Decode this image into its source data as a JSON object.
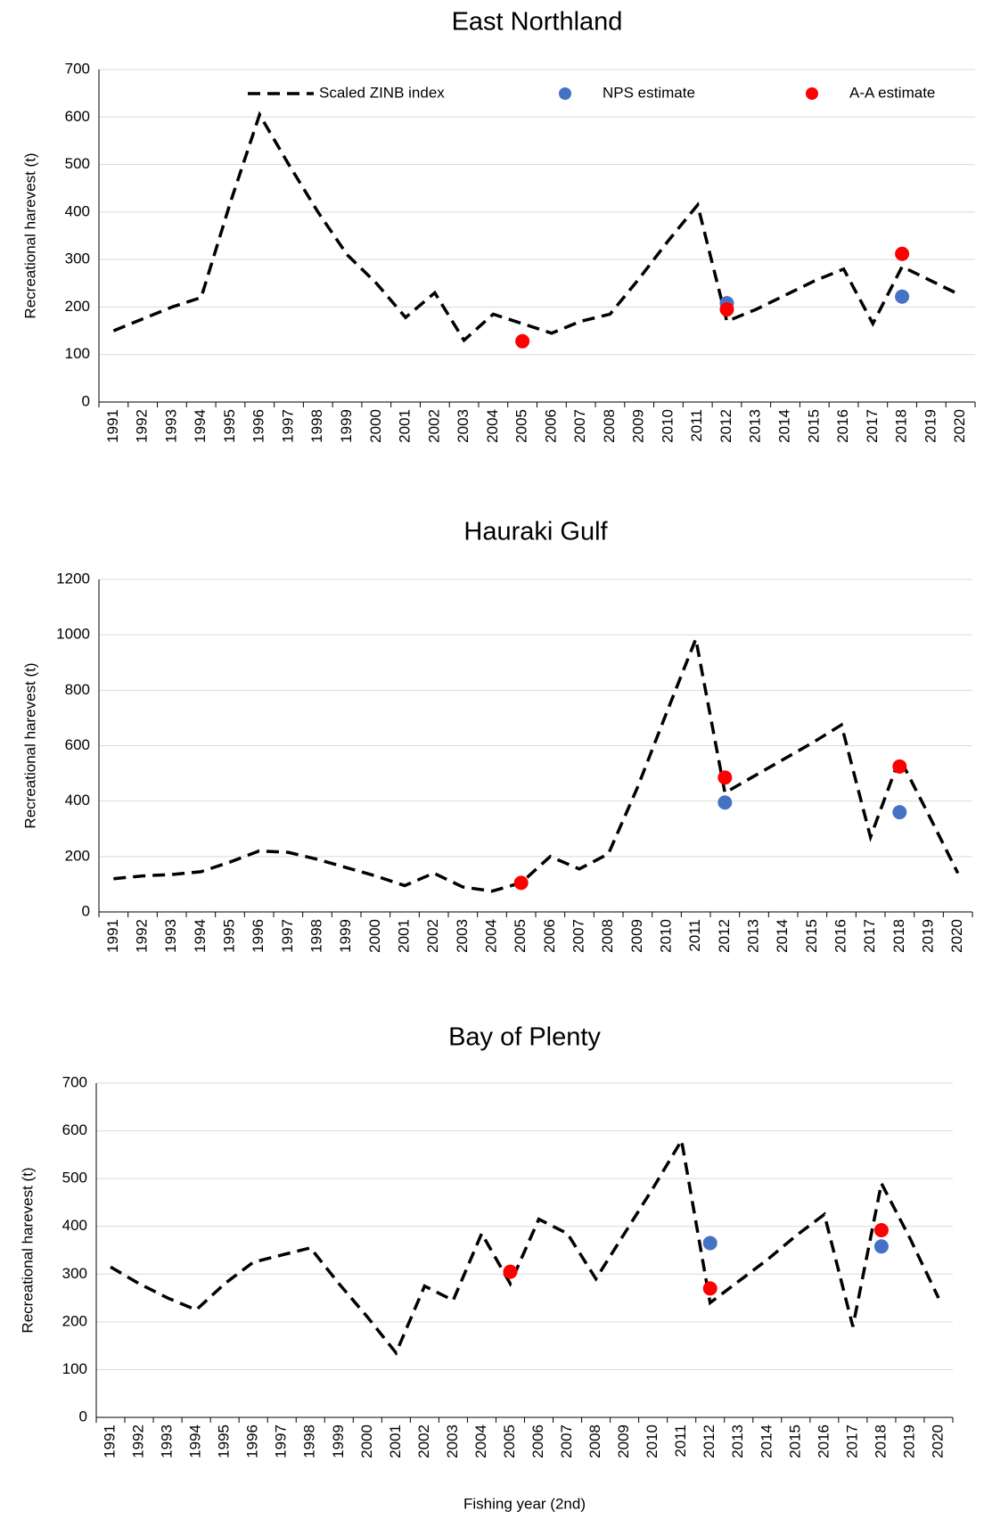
{
  "chart_data": [
    {
      "type": "line",
      "title": "East Northland",
      "y_label": "Recreational harevest (t)",
      "categories": [
        "1991",
        "1992",
        "1993",
        "1994",
        "1995",
        "1996",
        "1997",
        "1998",
        "1999",
        "2000",
        "2001",
        "2002",
        "2003",
        "2004",
        "2005",
        "2006",
        "2007",
        "2008",
        "2009",
        "2010",
        "2011",
        "2012",
        "2013",
        "2014",
        "2015",
        "2016",
        "2017",
        "2018",
        "2019",
        "2020"
      ],
      "ylim": [
        0,
        700
      ],
      "yticks": [
        0,
        100,
        200,
        300,
        400,
        500,
        600,
        700
      ],
      "grid": true,
      "legend": "top",
      "series": [
        {
          "name": "Scaled ZINB index",
          "type": "line",
          "color": "#000000",
          "values": [
            150,
            175,
            200,
            220,
            420,
            605,
            500,
            400,
            310,
            250,
            178,
            230,
            130,
            185,
            165,
            145,
            170,
            185,
            260,
            340,
            415,
            170,
            195,
            225,
            255,
            280,
            165,
            285,
            255,
            225
          ]
        },
        {
          "name": "NPS estimate",
          "type": "scatter",
          "color": "#4472c4",
          "values": [
            null,
            null,
            null,
            null,
            null,
            null,
            null,
            null,
            null,
            null,
            null,
            null,
            null,
            null,
            null,
            null,
            null,
            null,
            null,
            null,
            null,
            208,
            null,
            null,
            null,
            null,
            null,
            222,
            null,
            null
          ]
        },
        {
          "name": "A-A estimate",
          "type": "scatter",
          "color": "#ff0000",
          "values": [
            null,
            null,
            null,
            null,
            null,
            null,
            null,
            null,
            null,
            null,
            null,
            null,
            null,
            null,
            128,
            null,
            null,
            null,
            null,
            null,
            null,
            195,
            null,
            null,
            null,
            null,
            null,
            312,
            null,
            null
          ]
        }
      ]
    },
    {
      "type": "line",
      "title": "Hauraki Gulf",
      "y_label": "Recreational harevest (t)",
      "categories": [
        "1991",
        "1992",
        "1993",
        "1994",
        "1995",
        "1996",
        "1997",
        "1998",
        "1999",
        "2000",
        "2001",
        "2002",
        "2003",
        "2004",
        "2005",
        "2006",
        "2007",
        "2008",
        "2009",
        "2010",
        "2011",
        "2012",
        "2013",
        "2014",
        "2015",
        "2016",
        "2017",
        "2018",
        "2019",
        "2020"
      ],
      "ylim": [
        0,
        1200
      ],
      "yticks": [
        0,
        200,
        400,
        600,
        800,
        1000,
        1200
      ],
      "grid": true,
      "series": [
        {
          "type": "line",
          "color": "#000000",
          "values": [
            120,
            130,
            135,
            145,
            180,
            220,
            215,
            190,
            160,
            130,
            95,
            140,
            90,
            75,
            105,
            200,
            155,
            210,
            450,
            720,
            985,
            430,
            490,
            550,
            610,
            675,
            270,
            555,
            350,
            140
          ]
        },
        {
          "type": "scatter",
          "color": "#4472c4",
          "values": [
            null,
            null,
            null,
            null,
            null,
            null,
            null,
            null,
            null,
            null,
            null,
            null,
            null,
            null,
            null,
            null,
            null,
            null,
            null,
            null,
            null,
            395,
            null,
            null,
            null,
            null,
            null,
            360,
            null,
            null
          ]
        },
        {
          "type": "scatter",
          "color": "#ff0000",
          "values": [
            null,
            null,
            null,
            null,
            null,
            null,
            null,
            null,
            null,
            null,
            null,
            null,
            null,
            null,
            105,
            null,
            null,
            null,
            null,
            null,
            null,
            485,
            null,
            null,
            null,
            null,
            null,
            525,
            null,
            null
          ]
        }
      ]
    },
    {
      "type": "line",
      "title": "Bay of Plenty",
      "y_label": "Recreational harevest (t)",
      "x_label": "Fishing year (2nd)",
      "categories": [
        "1991",
        "1992",
        "1993",
        "1994",
        "1995",
        "1996",
        "1997",
        "1998",
        "1999",
        "2000",
        "2001",
        "2002",
        "2003",
        "2004",
        "2005",
        "2006",
        "2007",
        "2008",
        "2009",
        "2010",
        "2011",
        "2012",
        "2013",
        "2014",
        "2015",
        "2016",
        "2017",
        "2018",
        "2019",
        "2020"
      ],
      "ylim": [
        0,
        700
      ],
      "yticks": [
        0,
        100,
        200,
        300,
        400,
        500,
        600,
        700
      ],
      "grid": true,
      "series": [
        {
          "type": "line",
          "color": "#000000",
          "values": [
            315,
            280,
            250,
            225,
            280,
            325,
            340,
            355,
            280,
            210,
            135,
            275,
            245,
            385,
            280,
            415,
            385,
            290,
            385,
            480,
            580,
            240,
            285,
            330,
            380,
            425,
            190,
            490,
            375,
            250
          ]
        },
        {
          "type": "scatter",
          "color": "#4472c4",
          "values": [
            null,
            null,
            null,
            null,
            null,
            null,
            null,
            null,
            null,
            null,
            null,
            null,
            null,
            null,
            null,
            null,
            null,
            null,
            null,
            null,
            null,
            365,
            null,
            null,
            null,
            null,
            null,
            358,
            null,
            null
          ]
        },
        {
          "type": "scatter",
          "color": "#ff0000",
          "values": [
            null,
            null,
            null,
            null,
            null,
            null,
            null,
            null,
            null,
            null,
            null,
            null,
            null,
            null,
            305,
            null,
            null,
            null,
            null,
            null,
            null,
            270,
            null,
            null,
            null,
            null,
            null,
            392,
            null,
            null
          ]
        }
      ]
    }
  ]
}
